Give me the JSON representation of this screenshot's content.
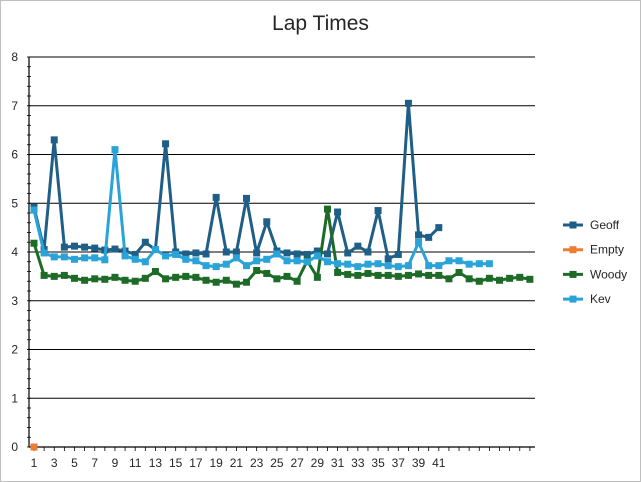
{
  "chart_data": {
    "type": "line",
    "title": "Lap Times",
    "xlabel": "",
    "ylabel": "",
    "ylim": [
      0,
      8
    ],
    "yticks": [
      "0",
      "1",
      "2",
      "3",
      "4",
      "5",
      "6",
      "7",
      "8"
    ],
    "xtick_labels": [
      "1",
      "3",
      "5",
      "7",
      "9",
      "11",
      "13",
      "15",
      "17",
      "19",
      "21",
      "23",
      "25",
      "27",
      "29",
      "31",
      "33",
      "35",
      "37",
      "39",
      "41"
    ],
    "xrange": [
      1,
      50
    ],
    "grid": "horizontal",
    "legend_position": "right",
    "series": [
      {
        "name": "Geoff",
        "color": "#1f5f87",
        "x": [
          1,
          2,
          3,
          4,
          5,
          6,
          7,
          8,
          9,
          10,
          11,
          12,
          13,
          14,
          15,
          16,
          17,
          18,
          19,
          20,
          21,
          22,
          23,
          24,
          25,
          26,
          27,
          28,
          29,
          30,
          31,
          32,
          33,
          34,
          35,
          36,
          37,
          38,
          39,
          40,
          41
        ],
        "values": [
          4.92,
          4.05,
          6.3,
          4.1,
          4.12,
          4.1,
          4.08,
          4.04,
          4.06,
          4.02,
          3.95,
          4.2,
          4.05,
          6.22,
          4.0,
          3.96,
          3.98,
          3.96,
          5.12,
          4.0,
          4.0,
          5.1,
          3.98,
          4.62,
          4.02,
          3.98,
          3.96,
          3.95,
          4.02,
          3.96,
          4.82,
          3.98,
          4.12,
          4.0,
          4.85,
          3.86,
          3.95,
          7.05,
          4.35,
          4.3,
          4.5
        ]
      },
      {
        "name": "Empty",
        "color": "#ed7d31",
        "x": [
          1
        ],
        "values": [
          0
        ]
      },
      {
        "name": "Woody",
        "color": "#1e6b28",
        "x": [
          1,
          2,
          3,
          4,
          5,
          6,
          7,
          8,
          9,
          10,
          11,
          12,
          13,
          14,
          15,
          16,
          17,
          18,
          19,
          20,
          21,
          22,
          23,
          24,
          25,
          26,
          27,
          28,
          29,
          30,
          31,
          32,
          33,
          34,
          35,
          36,
          37,
          38,
          39,
          40,
          41,
          42,
          43,
          44,
          45,
          46,
          47,
          48,
          49,
          50
        ],
        "values": [
          4.18,
          3.52,
          3.5,
          3.52,
          3.46,
          3.42,
          3.45,
          3.44,
          3.48,
          3.42,
          3.4,
          3.46,
          3.6,
          3.45,
          3.48,
          3.5,
          3.48,
          3.42,
          3.38,
          3.42,
          3.34,
          3.38,
          3.62,
          3.56,
          3.45,
          3.5,
          3.4,
          3.82,
          3.48,
          4.88,
          3.58,
          3.54,
          3.52,
          3.56,
          3.52,
          3.52,
          3.5,
          3.52,
          3.55,
          3.52,
          3.52,
          3.45,
          3.58,
          3.45,
          3.4,
          3.46,
          3.42,
          3.46,
          3.48,
          3.44
        ]
      },
      {
        "name": "Kev",
        "color": "#2aa3d8",
        "x": [
          1,
          2,
          3,
          4,
          5,
          6,
          7,
          8,
          9,
          10,
          11,
          12,
          13,
          14,
          15,
          16,
          17,
          18,
          19,
          20,
          21,
          22,
          23,
          24,
          25,
          26,
          27,
          28,
          29,
          30,
          31,
          32,
          33,
          34,
          35,
          36,
          37,
          38,
          39,
          40,
          41,
          42,
          43,
          44,
          45,
          46
        ],
        "values": [
          4.86,
          3.98,
          3.9,
          3.9,
          3.85,
          3.88,
          3.88,
          3.84,
          6.1,
          3.92,
          3.85,
          3.8,
          4.05,
          3.92,
          3.95,
          3.85,
          3.82,
          3.72,
          3.7,
          3.75,
          3.88,
          3.72,
          3.82,
          3.85,
          3.96,
          3.82,
          3.82,
          3.8,
          3.92,
          3.8,
          3.76,
          3.75,
          3.7,
          3.75,
          3.76,
          3.72,
          3.7,
          3.72,
          4.2,
          3.72,
          3.72,
          3.82,
          3.82,
          3.75,
          3.76,
          3.76
        ]
      }
    ]
  }
}
